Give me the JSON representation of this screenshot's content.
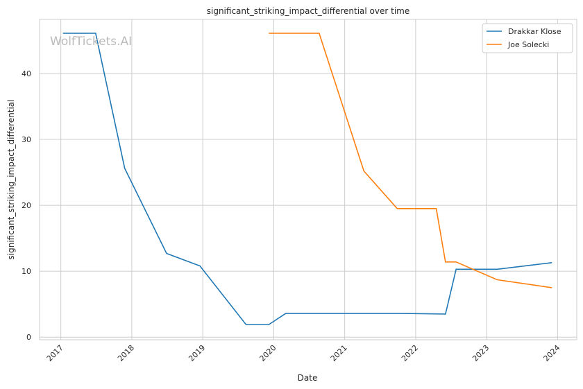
{
  "chart_data": {
    "type": "line",
    "title": "significant_striking_impact_differential over time",
    "xlabel": "Date",
    "ylabel": "significant_striking_impact_differential",
    "watermark": "WolfTickets.AI",
    "xlim": [
      2016.7,
      2024.27
    ],
    "ylim": [
      -0.4,
      48.2
    ],
    "xticks": [
      2017,
      2018,
      2019,
      2020,
      2021,
      2022,
      2023,
      2024
    ],
    "xtick_labels": [
      "2017",
      "2018",
      "2019",
      "2020",
      "2021",
      "2022",
      "2023",
      "2024"
    ],
    "yticks": [
      0,
      10,
      20,
      30,
      40
    ],
    "ytick_labels": [
      "0",
      "10",
      "20",
      "30",
      "40"
    ],
    "grid": true,
    "legend_position": "top-right",
    "series": [
      {
        "name": "Drakkar Klose",
        "color": "#1f77b4",
        "x": [
          2017.03,
          2017.49,
          2017.9,
          2018.49,
          2018.96,
          2019.61,
          2019.93,
          2020.17,
          2021.75,
          2022.42,
          2022.57,
          2023.15,
          2023.92
        ],
        "y": [
          46.1,
          46.1,
          25.6,
          12.7,
          10.8,
          1.9,
          1.9,
          3.6,
          3.6,
          3.5,
          10.3,
          10.3,
          11.3
        ]
      },
      {
        "name": "Joe Solecki",
        "color": "#ff7f0e",
        "x": [
          2019.93,
          2020.64,
          2021.27,
          2021.74,
          2022.29,
          2022.42,
          2022.57,
          2023.15,
          2023.92
        ],
        "y": [
          46.1,
          46.1,
          25.2,
          19.5,
          19.5,
          11.4,
          11.4,
          8.7,
          7.5
        ]
      }
    ]
  }
}
